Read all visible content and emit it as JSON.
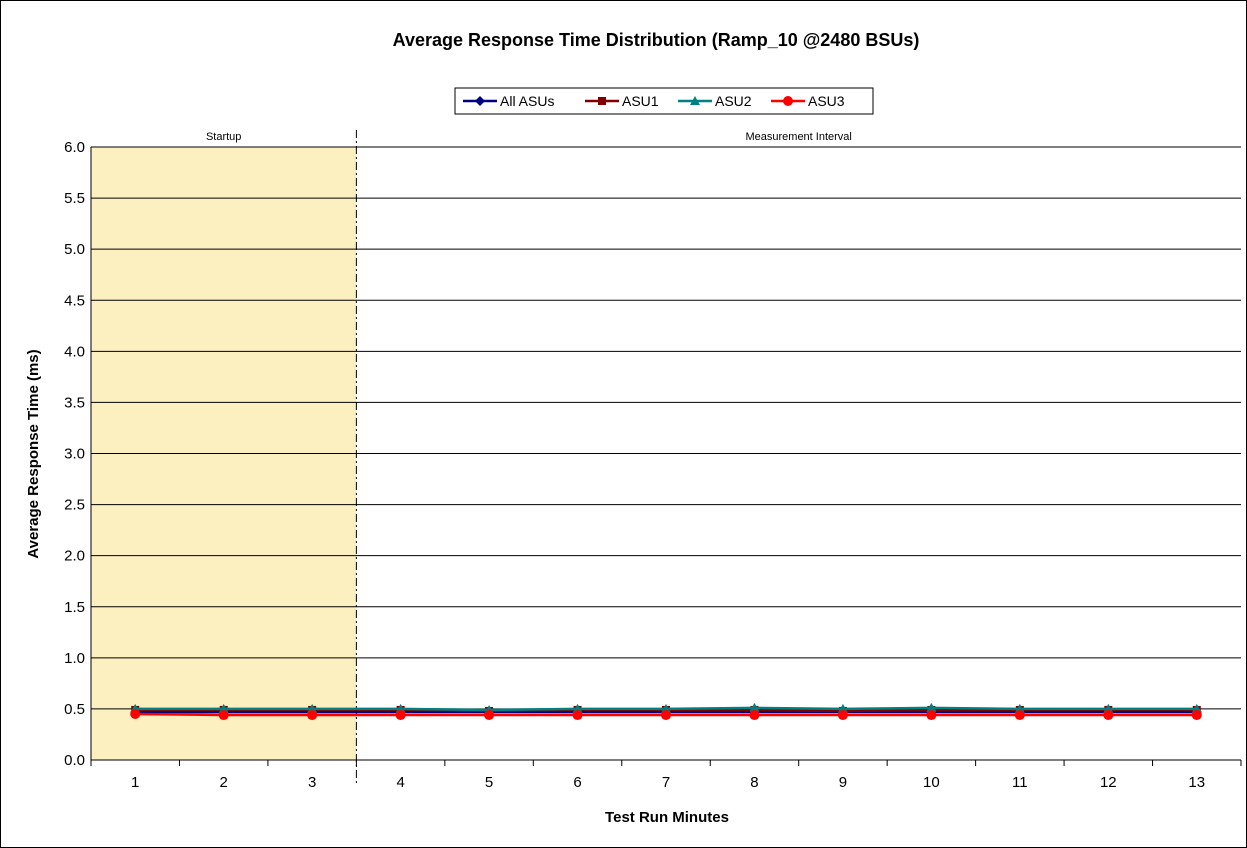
{
  "chart_data": {
    "type": "line",
    "title": "Average Response Time Distribution (Ramp_10 @2480 BSUs)",
    "xlabel": "Test Run Minutes",
    "ylabel": "Average Response Time (ms)",
    "categories": [
      "1",
      "2",
      "3",
      "4",
      "5",
      "6",
      "7",
      "8",
      "9",
      "10",
      "11",
      "12",
      "13"
    ],
    "ylim": [
      0,
      6
    ],
    "yticks": [
      "0.0",
      "0.5",
      "1.0",
      "1.5",
      "2.0",
      "2.5",
      "3.0",
      "3.5",
      "4.0",
      "4.5",
      "5.0",
      "5.5",
      "6.0"
    ],
    "grid": true,
    "legend_position": "top",
    "regions": [
      {
        "label": "Startup",
        "from_category": "1",
        "to_category": "3",
        "fill": "#fcefc0"
      },
      {
        "label": "Measurement Interval",
        "from_category": "4",
        "to_category": "13"
      }
    ],
    "series": [
      {
        "name": "All ASUs",
        "color": "#000080",
        "marker": "diamond",
        "values": [
          0.47,
          0.47,
          0.47,
          0.47,
          0.47,
          0.47,
          0.47,
          0.47,
          0.47,
          0.47,
          0.47,
          0.47,
          0.47
        ]
      },
      {
        "name": "ASU1",
        "color": "#800000",
        "marker": "square",
        "values": [
          0.49,
          0.49,
          0.49,
          0.49,
          0.48,
          0.49,
          0.49,
          0.49,
          0.48,
          0.49,
          0.49,
          0.49,
          0.49
        ]
      },
      {
        "name": "ASU2",
        "color": "#008080",
        "marker": "triangle",
        "values": [
          0.5,
          0.5,
          0.5,
          0.5,
          0.49,
          0.5,
          0.5,
          0.51,
          0.5,
          0.51,
          0.5,
          0.5,
          0.5
        ]
      },
      {
        "name": "ASU3",
        "color": "#ff0000",
        "marker": "circle",
        "values": [
          0.45,
          0.44,
          0.44,
          0.44,
          0.44,
          0.44,
          0.44,
          0.44,
          0.44,
          0.44,
          0.44,
          0.44,
          0.44
        ]
      }
    ]
  }
}
